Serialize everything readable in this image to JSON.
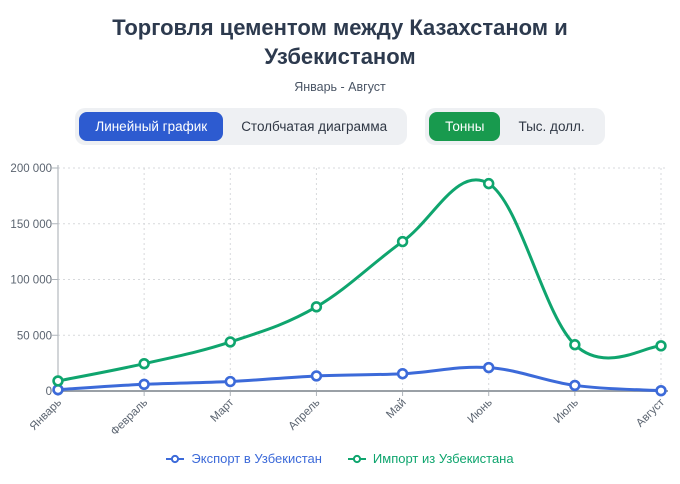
{
  "header": {
    "title": "Торговля цементом между Казахстаном и Узбекистаном",
    "subtitle": "Январь - Август"
  },
  "controls": {
    "chart_type": {
      "options": [
        {
          "label": "Линейный график",
          "active": true
        },
        {
          "label": "Столбчатая диаграмма",
          "active": false
        }
      ]
    },
    "unit": {
      "options": [
        {
          "label": "Тонны",
          "active": true
        },
        {
          "label": "Тыс. долл.",
          "active": false
        }
      ]
    }
  },
  "colors": {
    "active_chart_type_bg": "#2d5bd0",
    "active_unit_bg": "#189a4e",
    "grid": "#d7d9dc",
    "axis": "#9aa0a6"
  },
  "chart_data": {
    "type": "line",
    "title": "Торговля цементом между Казахстаном и Узбекистаном",
    "subtitle": "Январь - Август",
    "categories": [
      "Январь",
      "Февраль",
      "Март",
      "Апрель",
      "Май",
      "Июнь",
      "Июль",
      "Август"
    ],
    "series": [
      {
        "name": "Экспорт в Узбекистан",
        "color": "#3c6ad9",
        "values": [
          1200,
          6000,
          8500,
          13500,
          15500,
          21000,
          5000,
          300
        ]
      },
      {
        "name": "Импорт из Узбекистана",
        "color": "#0fa56e",
        "values": [
          9000,
          24500,
          44000,
          75500,
          134000,
          186000,
          41500,
          40500
        ]
      }
    ],
    "ylim": [
      0,
      200000
    ],
    "yticks": [
      {
        "value": 0,
        "label": "0"
      },
      {
        "value": 50000,
        "label": "50 000"
      },
      {
        "value": 100000,
        "label": "100 000"
      },
      {
        "value": 150000,
        "label": "150 000"
      },
      {
        "value": 200000,
        "label": "200 000"
      }
    ],
    "grid": true,
    "legend_position": "bottom",
    "xlabel": "",
    "ylabel": ""
  }
}
